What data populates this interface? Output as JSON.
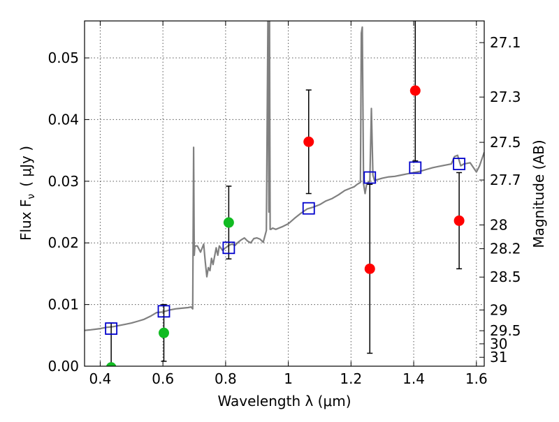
{
  "chart_data": {
    "type": "scatter",
    "xlabel": "Wavelength  λ (μm)",
    "ylabel_left": "Flux  F",
    "ylabel_left_sub": "ν",
    "ylabel_left_unit": "( μJy )",
    "ylabel_right": "Magnitude (AB)",
    "xlim": [
      0.35,
      1.625
    ],
    "ylim": [
      0.0,
      0.056
    ],
    "grid": true,
    "x_ticks": [
      0.4,
      0.6,
      0.8,
      1.0,
      1.2,
      1.4,
      1.6
    ],
    "x_tick_labels": [
      "0.4",
      "0.6",
      "0.8",
      "1",
      "1.2",
      "1.4",
      "1.6"
    ],
    "y_ticks": [
      0.0,
      0.01,
      0.02,
      0.03,
      0.04,
      0.05
    ],
    "y_tick_labels": [
      "0.00",
      "0.01",
      "0.02",
      "0.03",
      "0.04",
      "0.05"
    ],
    "mag_ticks": [
      "27.1",
      "27.3",
      "27.5",
      "27.7",
      "28",
      "28.2",
      "28.5",
      "29",
      "29.5",
      "30",
      "31"
    ],
    "colors": {
      "spectrum": "#808080",
      "model": "#0000cc",
      "green": "#11bb22",
      "red": "#ff0000",
      "errorbar": "#000000",
      "grid": "#555555"
    },
    "spectrum": {
      "x": [
        0.35,
        0.37,
        0.4,
        0.42,
        0.44,
        0.46,
        0.48,
        0.5,
        0.52,
        0.54,
        0.56,
        0.58,
        0.6,
        0.62,
        0.64,
        0.66,
        0.68,
        0.69,
        0.695,
        0.698,
        0.7,
        0.702,
        0.71,
        0.72,
        0.73,
        0.735,
        0.74,
        0.745,
        0.75,
        0.755,
        0.76,
        0.77,
        0.775,
        0.78,
        0.79,
        0.8,
        0.81,
        0.82,
        0.83,
        0.84,
        0.85,
        0.86,
        0.87,
        0.88,
        0.89,
        0.9,
        0.91,
        0.92,
        0.93,
        0.935,
        0.938,
        0.94,
        0.942,
        0.945,
        0.95,
        0.96,
        0.97,
        0.98,
        1.0,
        1.02,
        1.04,
        1.06,
        1.08,
        1.1,
        1.12,
        1.14,
        1.16,
        1.18,
        1.2,
        1.21,
        1.22,
        1.23,
        1.233,
        1.236,
        1.24,
        1.245,
        1.25,
        1.255,
        1.26,
        1.265,
        1.27,
        1.275,
        1.28,
        1.3,
        1.32,
        1.34,
        1.36,
        1.38,
        1.4,
        1.42,
        1.44,
        1.46,
        1.48,
        1.5,
        1.52,
        1.53,
        1.54,
        1.55,
        1.56,
        1.58,
        1.6,
        1.61,
        1.625
      ],
      "y": [
        0.0058,
        0.0059,
        0.0061,
        0.0063,
        0.0064,
        0.0066,
        0.0068,
        0.007,
        0.0073,
        0.0076,
        0.0081,
        0.0087,
        0.0088,
        0.0091,
        0.0093,
        0.0094,
        0.0095,
        0.0096,
        0.0093,
        0.0355,
        0.018,
        0.0195,
        0.0195,
        0.0185,
        0.0198,
        0.017,
        0.0145,
        0.016,
        0.0155,
        0.0175,
        0.0165,
        0.0192,
        0.018,
        0.0195,
        0.0188,
        0.0192,
        0.0196,
        0.0198,
        0.0196,
        0.0201,
        0.0205,
        0.0208,
        0.0203,
        0.02,
        0.0207,
        0.0208,
        0.0206,
        0.0201,
        0.022,
        0.056,
        0.025,
        0.057,
        0.0222,
        0.0222,
        0.0224,
        0.0222,
        0.0224,
        0.0226,
        0.0231,
        0.024,
        0.0248,
        0.0255,
        0.0258,
        0.0262,
        0.0268,
        0.0272,
        0.0278,
        0.0285,
        0.0289,
        0.0291,
        0.0295,
        0.0298,
        0.054,
        0.055,
        0.0296,
        0.028,
        0.0296,
        0.0298,
        0.03,
        0.0418,
        0.031,
        0.0301,
        0.0302,
        0.0305,
        0.0307,
        0.0308,
        0.031,
        0.0312,
        0.0314,
        0.0316,
        0.0319,
        0.0322,
        0.0324,
        0.0326,
        0.0328,
        0.034,
        0.0342,
        0.0325,
        0.0328,
        0.033,
        0.0315,
        0.0325,
        0.0347
      ]
    },
    "model_points": {
      "x": [
        0.435,
        0.603,
        0.81,
        1.065,
        1.26,
        1.405,
        1.545
      ],
      "y": [
        0.0061,
        0.0089,
        0.0192,
        0.0256,
        0.0306,
        0.0322,
        0.0328
      ]
    },
    "observed_green": [
      {
        "x": 0.435,
        "y": -0.0002,
        "yerr": 0.0072
      },
      {
        "x": 0.603,
        "y": 0.0054,
        "yerr": 0.0046
      },
      {
        "x": 0.81,
        "y": 0.0233,
        "yerr": 0.0059
      }
    ],
    "observed_red": [
      {
        "x": 1.065,
        "y": 0.0364,
        "yerr": 0.0084
      },
      {
        "x": 1.26,
        "y": 0.0158,
        "yerr": 0.0137
      },
      {
        "x": 1.405,
        "y": 0.0447,
        "yerr": 0.0114
      },
      {
        "x": 1.545,
        "y": 0.0236,
        "yerr": 0.0078
      }
    ]
  }
}
